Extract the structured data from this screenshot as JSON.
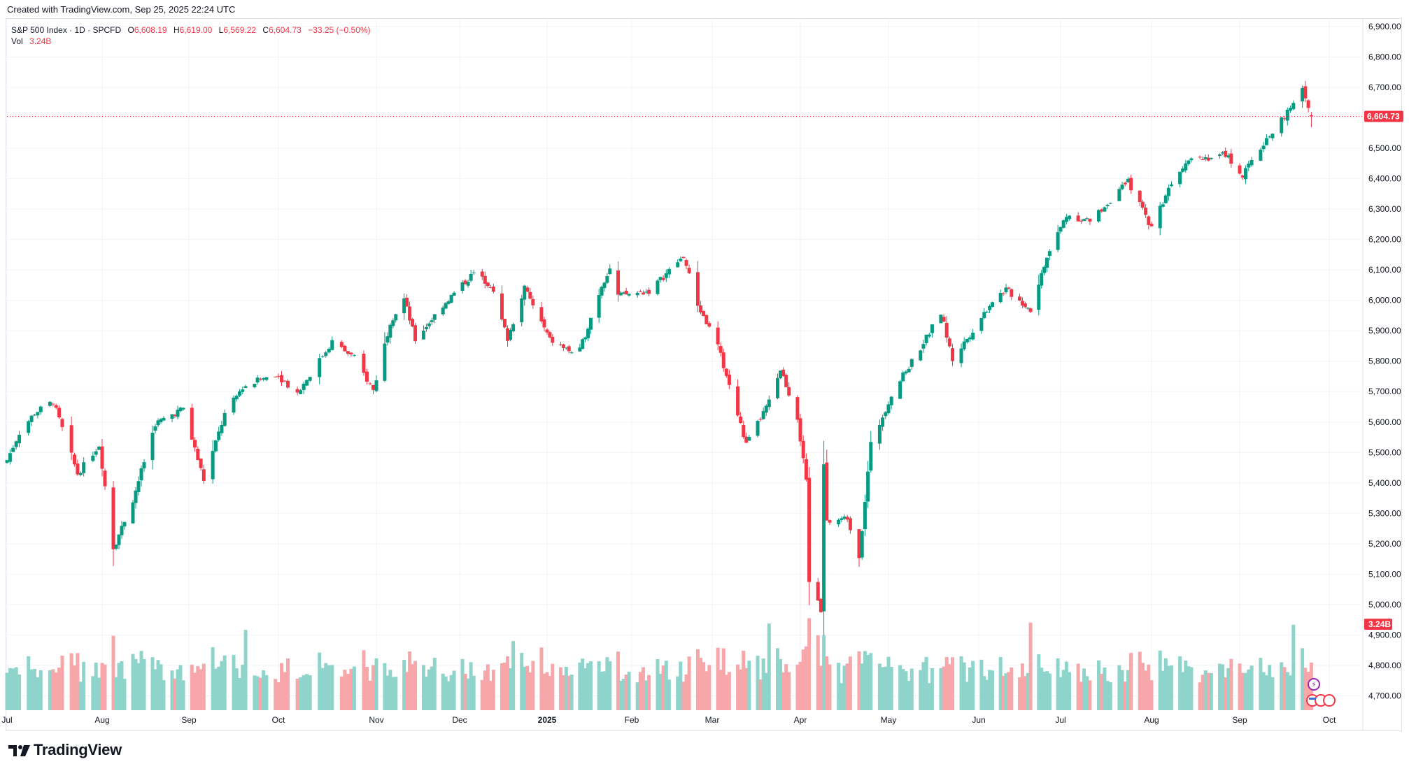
{
  "caption": "Created with TradingView.com, Sep 25, 2025 22:24 UTC",
  "brand": "TradingView",
  "legend": {
    "symbol": "S&P 500 Index · 1D · SPCFD",
    "open_label": "O",
    "open": "6,608.19",
    "high_label": "H",
    "high": "6,619.00",
    "low_label": "L",
    "low": "6,569.22",
    "close_label": "C",
    "close": "6,604.73",
    "change": "−33.25 (−0.50%)",
    "vol_label": "Vol",
    "vol": "3.24B"
  },
  "last_price_badge": "6,604.73",
  "last_volume_badge": "3.24B",
  "colors": {
    "up": "#089981",
    "down": "#f23645",
    "vol_up": "#8fd4cb",
    "vol_down": "#f7a7a9",
    "grid": "#f0f3fa"
  },
  "chart_data": {
    "type": "candlestick",
    "y_ticks": [
      "6,900.00",
      "6,800.00",
      "6,700.00",
      "6,600.00",
      "6,500.00",
      "6,400.00",
      "6,300.00",
      "6,200.00",
      "6,100.00",
      "6,000.00",
      "5,900.00",
      "5,800.00",
      "5,700.00",
      "5,600.00",
      "5,500.00",
      "5,400.00",
      "5,300.00",
      "5,200.00",
      "5,100.00",
      "5,000.00",
      "4,900.00",
      "4,800.00",
      "4,700.00"
    ],
    "y_tick_values": [
      6900,
      6800,
      6700,
      6600,
      6500,
      6400,
      6300,
      6200,
      6100,
      6000,
      5900,
      5800,
      5700,
      5600,
      5500,
      5400,
      5300,
      5200,
      5100,
      5000,
      4900,
      4800,
      4700
    ],
    "ylim": [
      4650,
      6930
    ],
    "x_ticks": [
      "Jul",
      "Aug",
      "Sep",
      "Oct",
      "Nov",
      "Dec",
      "2025",
      "Feb",
      "Mar",
      "Apr",
      "May",
      "Jun",
      "Jul",
      "Aug",
      "Sep",
      "Oct"
    ],
    "x_tick_dates": [
      "2024-07-01",
      "2024-08-01",
      "2024-09-01",
      "2024-10-01",
      "2024-11-01",
      "2024-12-01",
      "2025-01-01",
      "2025-02-01",
      "2025-03-01",
      "2025-04-01",
      "2025-05-01",
      "2025-06-01",
      "2025-07-01",
      "2025-08-01",
      "2025-09-01",
      "2025-10-01"
    ],
    "anchors": [
      [
        "2024-07-01",
        5475
      ],
      [
        "2024-07-05",
        5565
      ],
      [
        "2024-07-10",
        5630
      ],
      [
        "2024-07-16",
        5667
      ],
      [
        "2024-07-24",
        5430
      ],
      [
        "2024-07-31",
        5525
      ],
      [
        "2024-08-05",
        5185
      ],
      [
        "2024-08-12",
        5345
      ],
      [
        "2024-08-20",
        5595
      ],
      [
        "2024-08-30",
        5645
      ],
      [
        "2024-09-06",
        5410
      ],
      [
        "2024-09-13",
        5625
      ],
      [
        "2024-09-19",
        5715
      ],
      [
        "2024-09-30",
        5760
      ],
      [
        "2024-10-07",
        5695
      ],
      [
        "2024-10-18",
        5865
      ],
      [
        "2024-10-25",
        5810
      ],
      [
        "2024-10-31",
        5705
      ],
      [
        "2024-11-06",
        5930
      ],
      [
        "2024-11-11",
        6005
      ],
      [
        "2024-11-15",
        5870
      ],
      [
        "2024-11-25",
        5985
      ],
      [
        "2024-12-06",
        6090
      ],
      [
        "2024-12-12",
        6050
      ],
      [
        "2024-12-18",
        5875
      ],
      [
        "2024-12-24",
        6040
      ],
      [
        "2025-01-02",
        5870
      ],
      [
        "2025-01-10",
        5830
      ],
      [
        "2025-01-13",
        5835
      ],
      [
        "2025-01-21",
        6050
      ],
      [
        "2025-01-24",
        6105
      ],
      [
        "2025-01-27",
        6015
      ],
      [
        "2025-02-07",
        6030
      ],
      [
        "2025-02-19",
        6145
      ],
      [
        "2025-02-24",
        5985
      ],
      [
        "2025-03-03",
        5850
      ],
      [
        "2025-03-13",
        5525
      ],
      [
        "2025-03-21",
        5665
      ],
      [
        "2025-03-25",
        5775
      ],
      [
        "2025-03-31",
        5615
      ],
      [
        "2025-04-03",
        5400
      ],
      [
        "2025-04-04",
        5075
      ],
      [
        "2025-04-08",
        4985
      ],
      [
        "2025-04-09",
        5455
      ],
      [
        "2025-04-10",
        5270
      ],
      [
        "2025-04-17",
        5285
      ],
      [
        "2025-04-21",
        5160
      ],
      [
        "2025-04-25",
        5525
      ],
      [
        "2025-05-02",
        5690
      ],
      [
        "2025-05-12",
        5845
      ],
      [
        "2025-05-19",
        5960
      ],
      [
        "2025-05-23",
        5805
      ],
      [
        "2025-06-06",
        6000
      ],
      [
        "2025-06-11",
        6035
      ],
      [
        "2025-06-20",
        5970
      ],
      [
        "2025-06-26",
        6140
      ],
      [
        "2025-07-03",
        6280
      ],
      [
        "2025-07-11",
        6260
      ],
      [
        "2025-07-24",
        6390
      ],
      [
        "2025-08-01",
        6240
      ],
      [
        "2025-08-08",
        6390
      ],
      [
        "2025-08-14",
        6470
      ],
      [
        "2025-08-22",
        6470
      ],
      [
        "2025-08-27",
        6480
      ],
      [
        "2025-09-02",
        6410
      ],
      [
        "2025-09-10",
        6530
      ],
      [
        "2025-09-18",
        6630
      ],
      [
        "2025-09-22",
        6690
      ],
      [
        "2025-09-25",
        6605
      ]
    ],
    "last_candle": {
      "date": "2025-09-25",
      "open": 6608.19,
      "high": 6619.0,
      "low": 6569.22,
      "close": 6604.73,
      "volume_billions": 3.24
    },
    "volume_range_billions": [
      1.8,
      8.2
    ],
    "volume_spike_dates": [
      "2024-08-05",
      "2024-09-20",
      "2024-12-20",
      "2025-03-21",
      "2025-04-04",
      "2025-04-07",
      "2025-04-09",
      "2025-06-20",
      "2025-09-19"
    ]
  }
}
